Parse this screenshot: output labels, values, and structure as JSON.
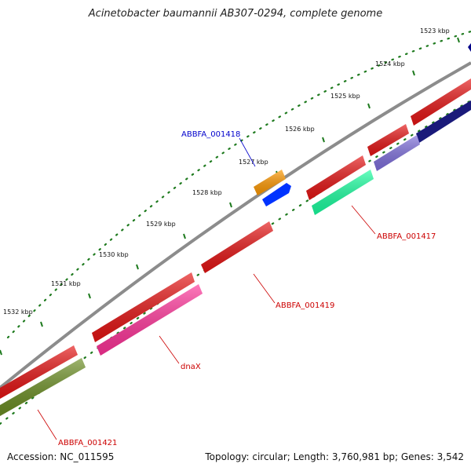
{
  "title": "Acinetobacter baumannii AB307-0294, complete genome",
  "footer": {
    "accession": "Accession: NC_011595",
    "summary": "Topology: circular; Length: 3,760,981 bp; Genes: 3,542"
  },
  "colors": {
    "backbone": "#8c8c8c",
    "tick_mark": "#1e7a1e",
    "label_red": "#cc0000",
    "label_blue": "#0000cc"
  },
  "kbp_labels": [
    "1523 kbp",
    "1524 kbp",
    "1525 kbp",
    "1526 kbp",
    "1527 kbp",
    "1528 kbp",
    "1529 kbp",
    "1530 kbp",
    "1531 kbp",
    "1532 kbp"
  ],
  "genes": [
    {
      "name": "ABBFA_001417",
      "color": "#e61414",
      "strand": "forward"
    },
    {
      "name": "ABBFA_001417",
      "color": "#1affa0",
      "strand": "cds"
    },
    {
      "name": "ABBFA_001418",
      "color": "#ff9900",
      "strand": "forward"
    },
    {
      "name": "ABBFA_001418",
      "color": "#0033ff",
      "strand": "cds"
    },
    {
      "name": "ABBFA_001419",
      "color": "#e61414",
      "strand": "forward"
    },
    {
      "name": "dnaX",
      "color": "#e61414",
      "strand": "forward"
    },
    {
      "name": "dnaX",
      "color": "#ff3399",
      "strand": "cds"
    },
    {
      "name": "ABBFA_001421",
      "color": "#e61414",
      "strand": "forward"
    },
    {
      "name": "ABBFA_001421",
      "color": "#6b8e23",
      "strand": "cds"
    }
  ],
  "labels": [
    {
      "text": "ABBFA_001418",
      "color": "#0000cc"
    },
    {
      "text": "ABBFA_001417",
      "color": "#cc0000"
    },
    {
      "text": "ABBFA_001419",
      "color": "#cc0000"
    },
    {
      "text": "dnaX",
      "color": "#cc0000"
    },
    {
      "text": "ABBFA_001421",
      "color": "#cc0000"
    }
  ]
}
